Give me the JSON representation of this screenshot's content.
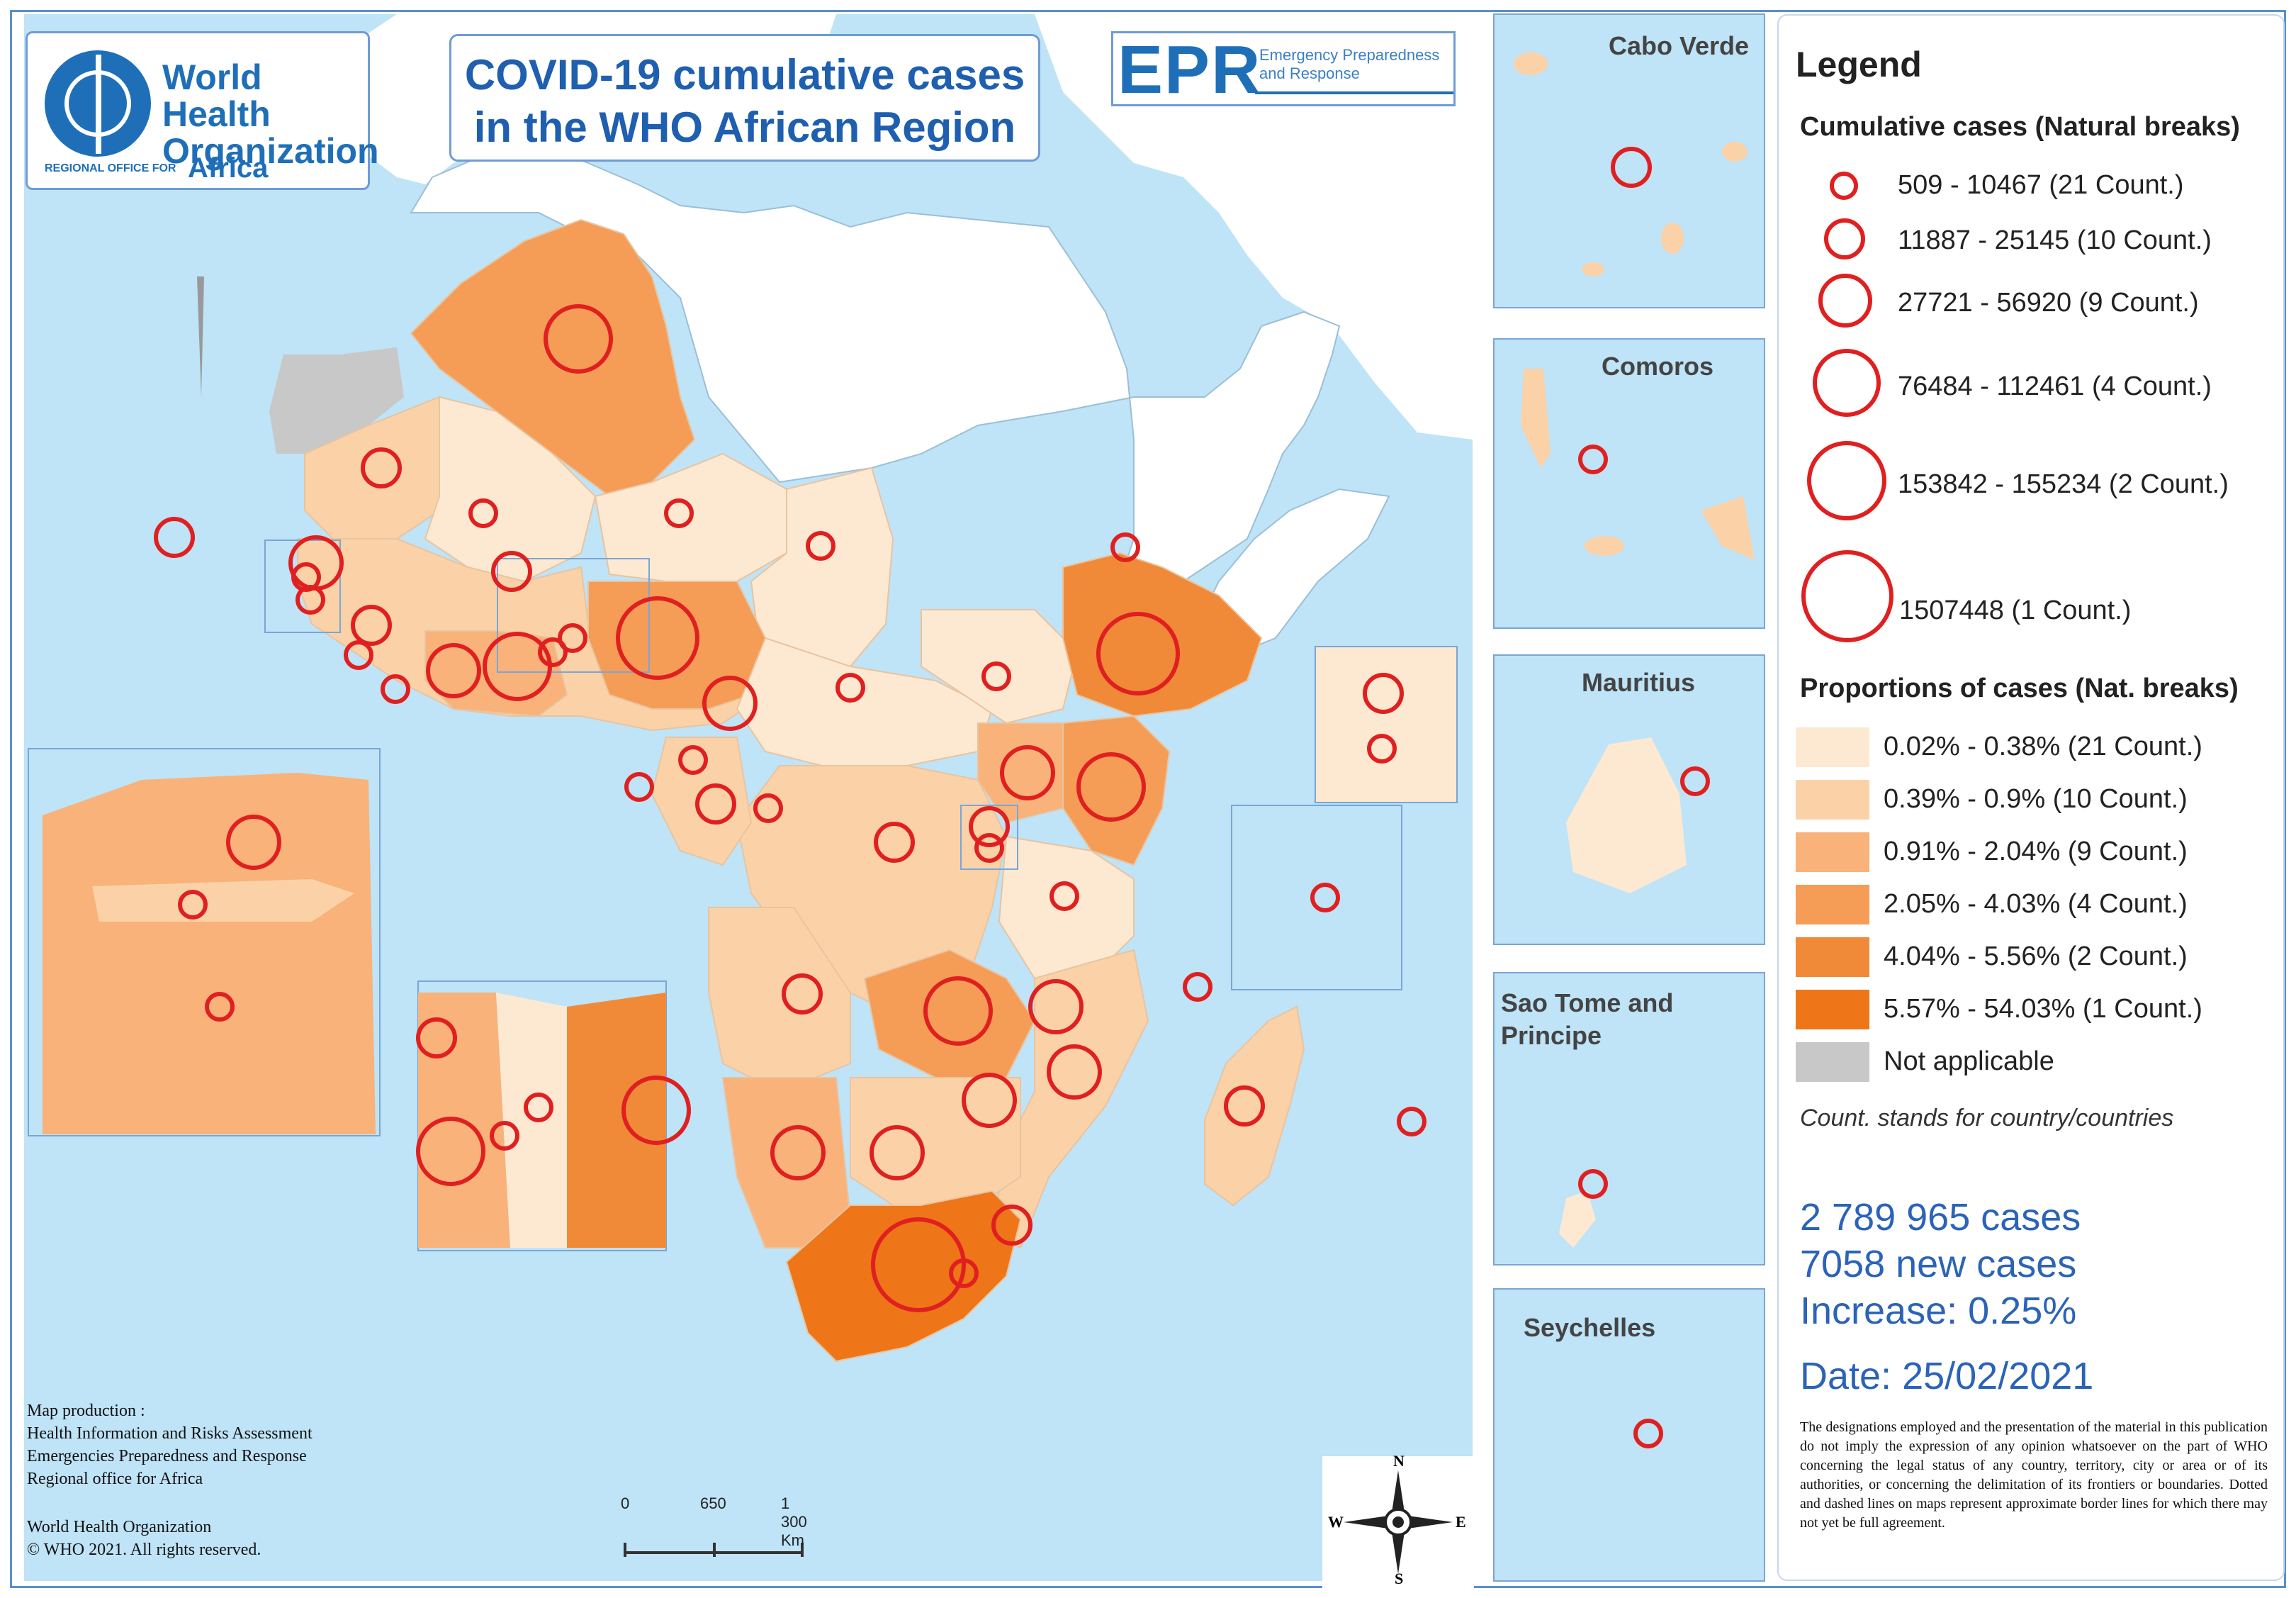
{
  "title": "COVID-19 cumulative cases in the WHO African Region",
  "who_logo": {
    "name": "World Health Organization",
    "regional_office": "REGIONAL OFFICE FOR",
    "region": "Africa"
  },
  "epr_logo": {
    "acronym": "EPR",
    "full": "Emergency Preparedness and Response"
  },
  "insets": {
    "cabo_verde": "Cabo Verde",
    "comoros": "Comoros",
    "mauritius": "Mauritius",
    "sao_tome": "Sao Tome and Principe",
    "seychelles": "Seychelles"
  },
  "legend": {
    "heading": "Legend",
    "circles_heading": "Cumulative cases (Natural breaks)",
    "circles": [
      {
        "label": "509 - 10467 (21 Count.)",
        "class_index": 1
      },
      {
        "label": "11887 - 25145 (10 Count.)",
        "class_index": 2
      },
      {
        "label": "27721 - 56920 (9 Count.)",
        "class_index": 3
      },
      {
        "label": "76484 - 112461 (4 Count.)",
        "class_index": 4
      },
      {
        "label": "153842 - 155234 (2 Count.)",
        "class_index": 5
      },
      {
        "label": "1507448 (1 Count.)",
        "class_index": 6
      }
    ],
    "proportions_heading": "Proportions of cases (Nat. breaks)",
    "proportions": [
      {
        "label": "0.02% - 0.38% (21 Count.)",
        "color": "#fde9d2"
      },
      {
        "label": "0.39% - 0.9% (10 Count.)",
        "color": "#fbd2a8"
      },
      {
        "label": "0.91% - 2.04% (9 Count.)",
        "color": "#f8b27a"
      },
      {
        "label": "2.05% - 4.03% (4 Count.)",
        "color": "#f59d57"
      },
      {
        "label": "4.04% - 5.56% (2 Count.)",
        "color": "#f08a38"
      },
      {
        "label": "5.57% - 54.03% (1 Count.)",
        "color": "#ee7518"
      },
      {
        "label": "Not applicable",
        "color": "#c8c8c8"
      }
    ],
    "note": "Count. stands for country/countries"
  },
  "stats": {
    "cases": "2 789 965 cases",
    "new_cases": "7058 new cases",
    "increase": "Increase: 0.25%",
    "date": "Date: 25/02/2021"
  },
  "disclaimer": "The designations employed and the presentation of the material in this publication do not imply the expression of any opinion whatsoever on the part of WHO concerning the legal status of any country, territory, city or area or of its authorities, or concerning the delimitation of its frontiers or boundaries. Dotted and dashed lines on maps represent approximate border lines for which there may not yet be full agreement.",
  "credits": {
    "production": [
      "Map production :",
      "Health Information and Risks Assessment",
      "Emergencies Preparedness and Response",
      "Regional office for Africa"
    ],
    "copyright": [
      "World Health Organization",
      "© WHO 2021. All rights reserved."
    ]
  },
  "scale": {
    "labels": [
      "0",
      "650",
      "1 300 Km"
    ]
  },
  "compass": {
    "n": "N",
    "s": "S",
    "e": "E",
    "w": "W"
  },
  "colors": {
    "sea": "#bfe3f7",
    "land_other": "#ffffff",
    "not_applicable": "#c8c8c8",
    "circle": "#e02020",
    "frame": "#5b8fd1",
    "stat_text": "#2b63b8"
  }
}
